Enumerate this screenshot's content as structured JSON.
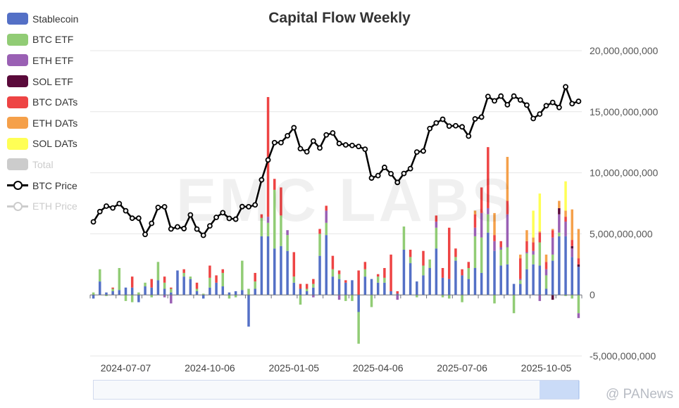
{
  "title": "Capital Flow Weekly",
  "watermark": "EMC LABS",
  "brand": "@ PANews",
  "legend": [
    {
      "name": "Stablecoin",
      "color": "#5470c6",
      "kind": "box",
      "active": true
    },
    {
      "name": "BTC ETF",
      "color": "#91cc75",
      "kind": "box",
      "active": true
    },
    {
      "name": "ETH ETF",
      "color": "#9a60b4",
      "kind": "box",
      "active": true
    },
    {
      "name": "SOL ETF",
      "color": "#5a0a3a",
      "kind": "box",
      "active": true
    },
    {
      "name": "BTC DATs",
      "color": "#ee4444",
      "kind": "box",
      "active": true
    },
    {
      "name": "ETH DATs",
      "color": "#f5a04a",
      "kind": "box",
      "active": true
    },
    {
      "name": "SOL DATs",
      "color": "#ffff55",
      "kind": "box",
      "active": true
    },
    {
      "name": "Total",
      "color": "#cccccc",
      "kind": "box",
      "active": false
    },
    {
      "name": "BTC Price",
      "color": "#000000",
      "kind": "line",
      "active": true
    },
    {
      "name": "ETH Price",
      "color": "#cccccc",
      "kind": "line",
      "active": false
    }
  ],
  "chart_data": {
    "type": "bar",
    "stacked": true,
    "title": "Capital Flow Weekly",
    "x_tick_labels": [
      "2024-07-07",
      "2024-10-06",
      "2025-01-05",
      "2025-04-06",
      "2025-07-06",
      "2025-10-05"
    ],
    "x_tick_index": [
      5,
      18,
      31,
      44,
      57,
      70
    ],
    "y_axis": {
      "position": "right",
      "min": -5000000000,
      "max": 20000000000,
      "interval": 5000000000,
      "tick_labels": [
        "-5,000,000,000",
        "0",
        "5,000,000,000",
        "10,000,000,000",
        "15,000,000,000",
        "20,000,000,000"
      ]
    },
    "grid": true,
    "legend_position": "left",
    "series_order": [
      "Stablecoin",
      "BTC ETF",
      "ETH ETF",
      "SOL ETF",
      "BTC DATs",
      "ETH DATs",
      "SOL DATs"
    ],
    "weeks": [
      [
        -0.3,
        0.2,
        0,
        0,
        0,
        0,
        0
      ],
      [
        1.1,
        1.0,
        0,
        0,
        0,
        0,
        0
      ],
      [
        0.2,
        -0.1,
        0,
        0,
        0,
        0,
        0
      ],
      [
        0.3,
        0.2,
        0,
        0,
        0.1,
        0,
        0
      ],
      [
        0.4,
        1.8,
        0,
        0,
        0,
        0,
        0
      ],
      [
        0.6,
        -0.5,
        0,
        0,
        0,
        0,
        0
      ],
      [
        0.6,
        -0.6,
        0,
        0,
        0.9,
        0,
        0
      ],
      [
        -0.6,
        0.2,
        0,
        0,
        0,
        0,
        0
      ],
      [
        0.7,
        0.3,
        0,
        0,
        0,
        0,
        0
      ],
      [
        0.6,
        -0.2,
        0,
        0,
        0.7,
        0,
        0
      ],
      [
        1.2,
        1.5,
        0,
        0,
        0,
        0,
        0
      ],
      [
        0.5,
        0.5,
        -0.2,
        0,
        0.5,
        0,
        0
      ],
      [
        0.2,
        0.3,
        -0.7,
        0,
        0.1,
        0,
        0
      ],
      [
        2.0,
        0,
        0,
        0,
        0,
        0,
        0
      ],
      [
        1.5,
        0.3,
        0,
        0,
        0.3,
        0,
        0
      ],
      [
        1.3,
        0.2,
        0,
        0,
        0,
        0,
        0
      ],
      [
        0.3,
        0.2,
        0,
        0,
        0.5,
        0,
        0
      ],
      [
        -0.3,
        0.1,
        0,
        0,
        0,
        0,
        0
      ],
      [
        0.6,
        0.8,
        0,
        0,
        1.0,
        0,
        0
      ],
      [
        1.0,
        0,
        0,
        0,
        0.6,
        0,
        0
      ],
      [
        0.7,
        1.1,
        0,
        0,
        0.3,
        0,
        0
      ],
      [
        0.2,
        -0.3,
        0,
        0,
        0,
        0,
        0
      ],
      [
        0.3,
        -0.2,
        0,
        0,
        0,
        0,
        0
      ],
      [
        0.4,
        2.4,
        0,
        0,
        0,
        0,
        0
      ],
      [
        -2.6,
        0.5,
        0,
        0,
        0,
        0,
        0
      ],
      [
        0.5,
        0.6,
        0,
        0,
        0.7,
        0,
        0
      ],
      [
        4.8,
        1.5,
        0,
        0,
        0.3,
        0,
        0
      ],
      [
        4.8,
        1.1,
        0.5,
        0,
        9.8,
        0,
        0
      ],
      [
        3.8,
        4.8,
        0,
        0,
        0.9,
        0,
        0
      ],
      [
        4.0,
        2.5,
        0,
        0,
        2.3,
        0,
        0
      ],
      [
        3.6,
        1.3,
        0.4,
        0,
        0,
        0,
        0
      ],
      [
        1.0,
        0.5,
        0,
        0,
        2.0,
        0,
        0
      ],
      [
        0.5,
        -0.8,
        0,
        0,
        0.4,
        0,
        0
      ],
      [
        0.3,
        0.2,
        0,
        0,
        0.4,
        0,
        0
      ],
      [
        0.6,
        0.3,
        -0.2,
        0,
        0.4,
        0,
        0
      ],
      [
        3.2,
        1.8,
        0,
        0,
        0.4,
        0,
        0
      ],
      [
        4.9,
        1.0,
        1.0,
        0,
        0.4,
        0,
        0
      ],
      [
        1.5,
        0.6,
        0,
        0,
        1.1,
        0,
        0
      ],
      [
        1.3,
        0.4,
        -0.4,
        0,
        0.3,
        0,
        0
      ],
      [
        1.0,
        -0.5,
        0,
        0,
        0.2,
        0,
        0
      ],
      [
        1.2,
        -0.5,
        0,
        0,
        0,
        0,
        0
      ],
      [
        -1.4,
        -2.6,
        0,
        0,
        2.0,
        0,
        0
      ],
      [
        1.5,
        0.6,
        0,
        0,
        0.6,
        0,
        0
      ],
      [
        1.3,
        -1.0,
        0,
        0,
        0,
        0,
        0
      ],
      [
        1.0,
        0.5,
        0,
        0,
        0.2,
        0,
        0
      ],
      [
        1.0,
        0.4,
        0,
        0,
        0.8,
        0,
        0
      ],
      [
        0.3,
        0,
        0,
        0,
        3.0,
        0,
        0
      ],
      [
        0.1,
        0,
        -0.4,
        0,
        0.2,
        0,
        0
      ],
      [
        3.7,
        1.9,
        0,
        0,
        0,
        0,
        0
      ],
      [
        2.6,
        0.5,
        0,
        0,
        0.6,
        0,
        0
      ],
      [
        1.1,
        -0.2,
        0,
        0,
        0,
        0,
        0
      ],
      [
        1.6,
        0.8,
        0,
        0,
        1.2,
        0,
        0
      ],
      [
        2.2,
        0.7,
        0,
        0,
        0,
        0,
        0
      ],
      [
        3.8,
        1.7,
        0.5,
        0,
        0.5,
        0,
        0
      ],
      [
        1.4,
        -0.2,
        0,
        0,
        0.8,
        0,
        0
      ],
      [
        1.3,
        -0.3,
        0,
        0,
        4.2,
        0,
        0
      ],
      [
        2.8,
        0.3,
        0,
        0,
        0.7,
        0,
        0
      ],
      [
        1.6,
        -0.6,
        0,
        0,
        0.5,
        0,
        0
      ],
      [
        1.3,
        0.9,
        0,
        0,
        0.5,
        0,
        0
      ],
      [
        2.2,
        2.6,
        0.7,
        0,
        1.1,
        0.3,
        0
      ],
      [
        1.8,
        2.9,
        2.0,
        0,
        2.1,
        0,
        0
      ],
      [
        5.1,
        1.5,
        0.5,
        0,
        5.0,
        0,
        0
      ],
      [
        3.6,
        -0.7,
        0.8,
        0,
        0.5,
        1.8,
        0
      ],
      [
        2.4,
        1.3,
        0.2,
        0,
        0.5,
        0,
        0
      ],
      [
        2.5,
        1.4,
        2.7,
        0,
        1.1,
        3.6,
        0
      ],
      [
        0.9,
        -1.5,
        0,
        0,
        0,
        0,
        0
      ],
      [
        0.9,
        0.3,
        0.1,
        0,
        1.7,
        0.3,
        0
      ],
      [
        2.1,
        1.3,
        0.1,
        0,
        0.9,
        0.9,
        0
      ],
      [
        2.5,
        0.8,
        0.3,
        0,
        0.7,
        0.4,
        2.2
      ],
      [
        2.4,
        1.9,
        -0.5,
        0,
        0.8,
        0.1,
        3.1
      ],
      [
        0.5,
        1.1,
        0.5,
        0,
        0.6,
        0.6,
        0
      ],
      [
        2.8,
        0.5,
        1.4,
        -0.4,
        0.6,
        0.1,
        0
      ],
      [
        4.8,
        0.3,
        1.5,
        0.5,
        0,
        0.6,
        0
      ],
      [
        4.8,
        -0.1,
        1.2,
        0,
        0.4,
        0.5,
        2.4
      ],
      [
        3.1,
        -0.3,
        0.7,
        0.2,
        0.5,
        2.5,
        0
      ],
      [
        2.3,
        -1.5,
        -0.4,
        0.2,
        0.5,
        2.4,
        0
      ]
    ],
    "weeks_unit": "billions",
    "btc_price": [
      5.98,
      6.82,
      7.27,
      7.12,
      7.47,
      6.89,
      6.28,
      6.28,
      4.95,
      5.86,
      7.16,
      7.21,
      5.4,
      5.57,
      5.43,
      6.55,
      5.39,
      4.88,
      5.65,
      6.35,
      6.73,
      6.26,
      6.2,
      7.23,
      7.22,
      7.37,
      9.42,
      11.05,
      12.47,
      12.47,
      13.03,
      13.69,
      11.97,
      11.72,
      12.6,
      12.03,
      13.1,
      13.26,
      12.4,
      12.28,
      12.24,
      12.15,
      11.93,
      9.57,
      9.77,
      10.44,
      9.92,
      9.21,
      9.94,
      10.34,
      11.7,
      11.78,
      13.62,
      14.08,
      14.38,
      13.82,
      13.85,
      13.76,
      13.0,
      14.41,
      14.56,
      16.25,
      15.89,
      16.28,
      15.57,
      16.28,
      15.96,
      15.54,
      14.44,
      14.81,
      15.49,
      15.76,
      15.35,
      17.04,
      15.66,
      15.85
    ],
    "btc_price_scale": "plotted on the flow axis, in billions"
  }
}
